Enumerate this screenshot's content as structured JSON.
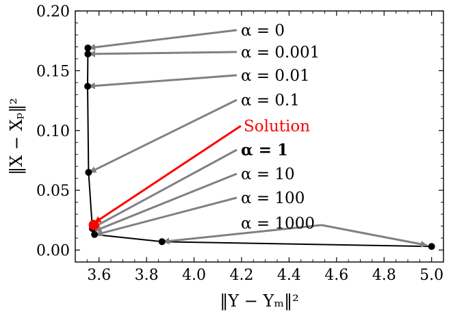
{
  "chart_data": {
    "type": "line",
    "title": "",
    "xlabel": "‖Y − Yₘ‖²",
    "ylabel": "‖X − Xₚ‖²",
    "xlim": [
      3.5,
      5.05
    ],
    "ylim": [
      -0.01,
      0.2
    ],
    "xticks": [
      3.6,
      3.8,
      4.0,
      4.2,
      4.4,
      4.6,
      4.8,
      5.0
    ],
    "xtick_labels": [
      "3.6",
      "3.8",
      "4.0",
      "4.2",
      "4.4",
      "4.6",
      "4.8",
      "5.0"
    ],
    "yticks": [
      0.0,
      0.05,
      0.1,
      0.15,
      0.2
    ],
    "ytick_labels": [
      "0.00",
      "0.05",
      "0.10",
      "0.15",
      "0.20"
    ],
    "grid": false,
    "line_color": "#000000",
    "point_color": "#000000",
    "points": [
      {
        "x": 3.553,
        "y": 0.169
      },
      {
        "x": 3.553,
        "y": 0.164
      },
      {
        "x": 3.552,
        "y": 0.137
      },
      {
        "x": 3.556,
        "y": 0.065
      },
      {
        "x": 3.572,
        "y": 0.018
      },
      {
        "x": 3.581,
        "y": 0.013
      },
      {
        "x": 3.865,
        "y": 0.007
      },
      {
        "x": 5.0,
        "y": 0.003
      }
    ],
    "solution_point": {
      "x": 3.578,
      "y": 0.021,
      "color": "#ff0000"
    },
    "annotations": [
      {
        "label_math": "α = 0",
        "color": "#808080",
        "point": {
          "x": 3.558,
          "y": 0.169
        }
      },
      {
        "label_math": "α = 0.001",
        "color": "#808080",
        "point": {
          "x": 3.558,
          "y": 0.164
        }
      },
      {
        "label_math": "α = 0.01",
        "color": "#808080",
        "point": {
          "x": 3.557,
          "y": 0.137
        }
      },
      {
        "label_math": "α = 0.1",
        "color": "#808080",
        "point": {
          "x": 3.561,
          "y": 0.065
        }
      },
      {
        "label_text": "Solution",
        "color": "#ff0000",
        "point": {
          "x": 3.582,
          "y": 0.023
        }
      },
      {
        "label_math": "α = 1",
        "color": "#808080",
        "bold": true,
        "point": {
          "x": 3.577,
          "y": 0.019
        }
      },
      {
        "label_math": "α = 10",
        "color": "#808080",
        "point": {
          "x": 3.582,
          "y": 0.016
        }
      },
      {
        "label_math": "α = 100",
        "color": "#808080",
        "point": {
          "x": 3.589,
          "y": 0.013
        }
      },
      {
        "label_math": "α = 1000",
        "color": "#808080",
        "point": {
          "x": 3.87,
          "y": 0.007
        }
      },
      {
        "label_math": "",
        "color": "#808080",
        "point": {
          "x": 4.98,
          "y": 0.004
        }
      }
    ]
  }
}
